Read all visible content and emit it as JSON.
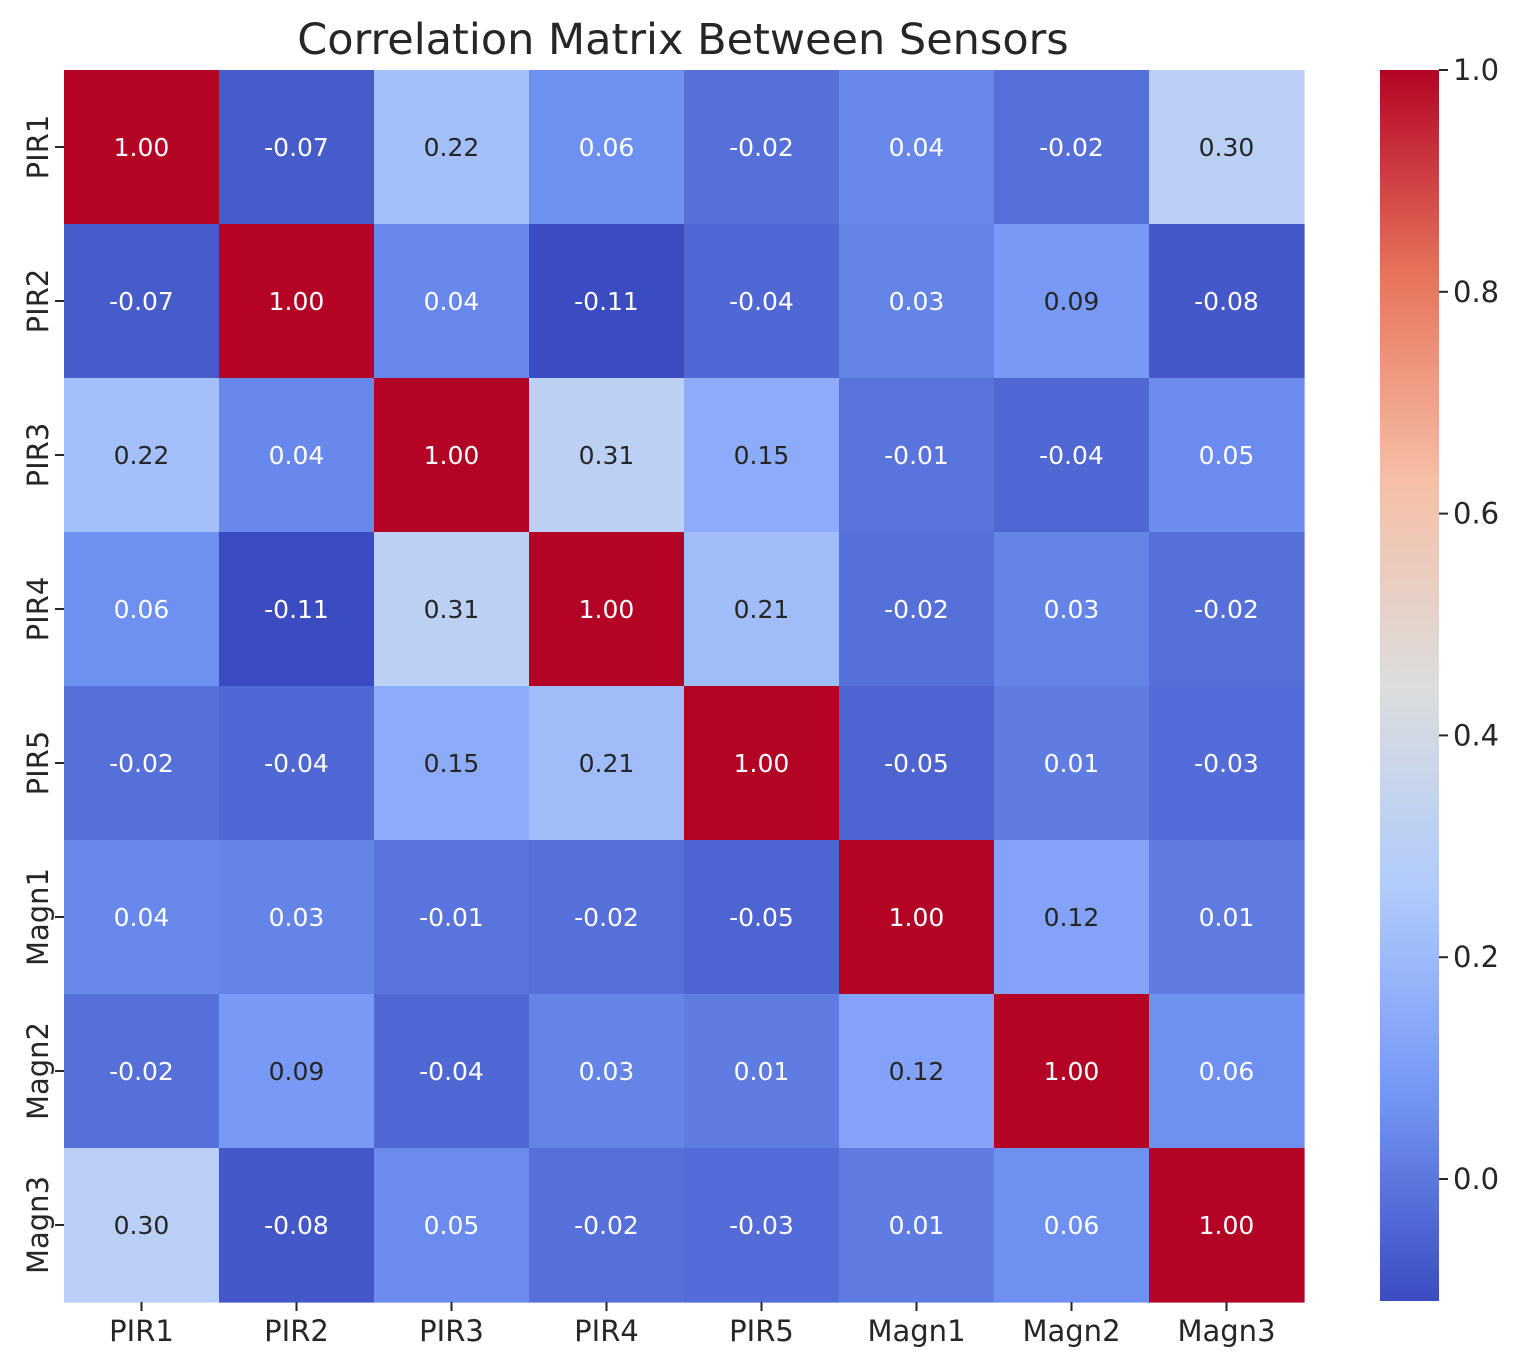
{
  "chart_data": {
    "type": "heatmap",
    "title": "Correlation Matrix Between Sensors",
    "xlabel": "",
    "ylabel": "",
    "x_categories": [
      "PIR1",
      "PIR2",
      "PIR3",
      "PIR4",
      "PIR5",
      "Magn1",
      "Magn2",
      "Magn3"
    ],
    "y_categories": [
      "PIR1",
      "PIR2",
      "PIR3",
      "PIR4",
      "PIR5",
      "Magn1",
      "Magn2",
      "Magn3"
    ],
    "values": [
      [
        1.0,
        -0.07,
        0.22,
        0.06,
        -0.02,
        0.04,
        -0.02,
        0.3
      ],
      [
        -0.07,
        1.0,
        0.04,
        -0.11,
        -0.04,
        0.03,
        0.09,
        -0.08
      ],
      [
        0.22,
        0.04,
        1.0,
        0.31,
        0.15,
        -0.01,
        -0.04,
        0.05
      ],
      [
        0.06,
        -0.11,
        0.31,
        1.0,
        0.21,
        -0.02,
        0.03,
        -0.02
      ],
      [
        -0.02,
        -0.04,
        0.15,
        0.21,
        1.0,
        -0.05,
        0.01,
        -0.03
      ],
      [
        0.04,
        0.03,
        -0.01,
        -0.02,
        -0.05,
        1.0,
        0.12,
        0.01
      ],
      [
        -0.02,
        0.09,
        -0.04,
        0.03,
        0.01,
        0.12,
        1.0,
        0.06
      ],
      [
        0.3,
        -0.08,
        0.05,
        -0.02,
        -0.03,
        0.01,
        0.06,
        1.0
      ]
    ],
    "cell_labels": [
      [
        "1.00",
        "-0.07",
        "0.22",
        "0.06",
        "-0.02",
        "0.04",
        "-0.02",
        "0.30"
      ],
      [
        "-0.07",
        "1.00",
        "0.04",
        "-0.11",
        "-0.04",
        "0.03",
        "0.09",
        "-0.08"
      ],
      [
        "0.22",
        "0.04",
        "1.00",
        "0.31",
        "0.15",
        "-0.01",
        "-0.04",
        "0.05"
      ],
      [
        "0.06",
        "-0.11",
        "0.31",
        "1.00",
        "0.21",
        "-0.02",
        "0.03",
        "-0.02"
      ],
      [
        "-0.02",
        "-0.04",
        "0.15",
        "0.21",
        "1.00",
        "-0.05",
        "0.01",
        "-0.03"
      ],
      [
        "0.04",
        "0.03",
        "-0.01",
        "-0.02",
        "-0.05",
        "1.00",
        "0.12",
        "0.01"
      ],
      [
        "-0.02",
        "0.09",
        "-0.04",
        "0.03",
        "0.01",
        "0.12",
        "1.00",
        "0.06"
      ],
      [
        "0.30",
        "-0.08",
        "0.05",
        "-0.02",
        "-0.03",
        "0.01",
        "0.06",
        "1.00"
      ]
    ],
    "colormap": "coolwarm",
    "colormap_stops": [
      "#3b4cc0",
      "#7396f5",
      "#b0cbfc",
      "#dcdddd",
      "#f6bfa6",
      "#e7745b",
      "#b40426"
    ],
    "vmin": -0.11,
    "vmax": 1.0,
    "colorbar": {
      "position": "right",
      "ticks": [
        0.0,
        0.2,
        0.4,
        0.6,
        0.8,
        1.0
      ],
      "tick_labels": [
        "0.0",
        "0.2",
        "0.4",
        "0.6",
        "0.8",
        "1.0"
      ]
    },
    "grid": false,
    "legend": "none"
  }
}
